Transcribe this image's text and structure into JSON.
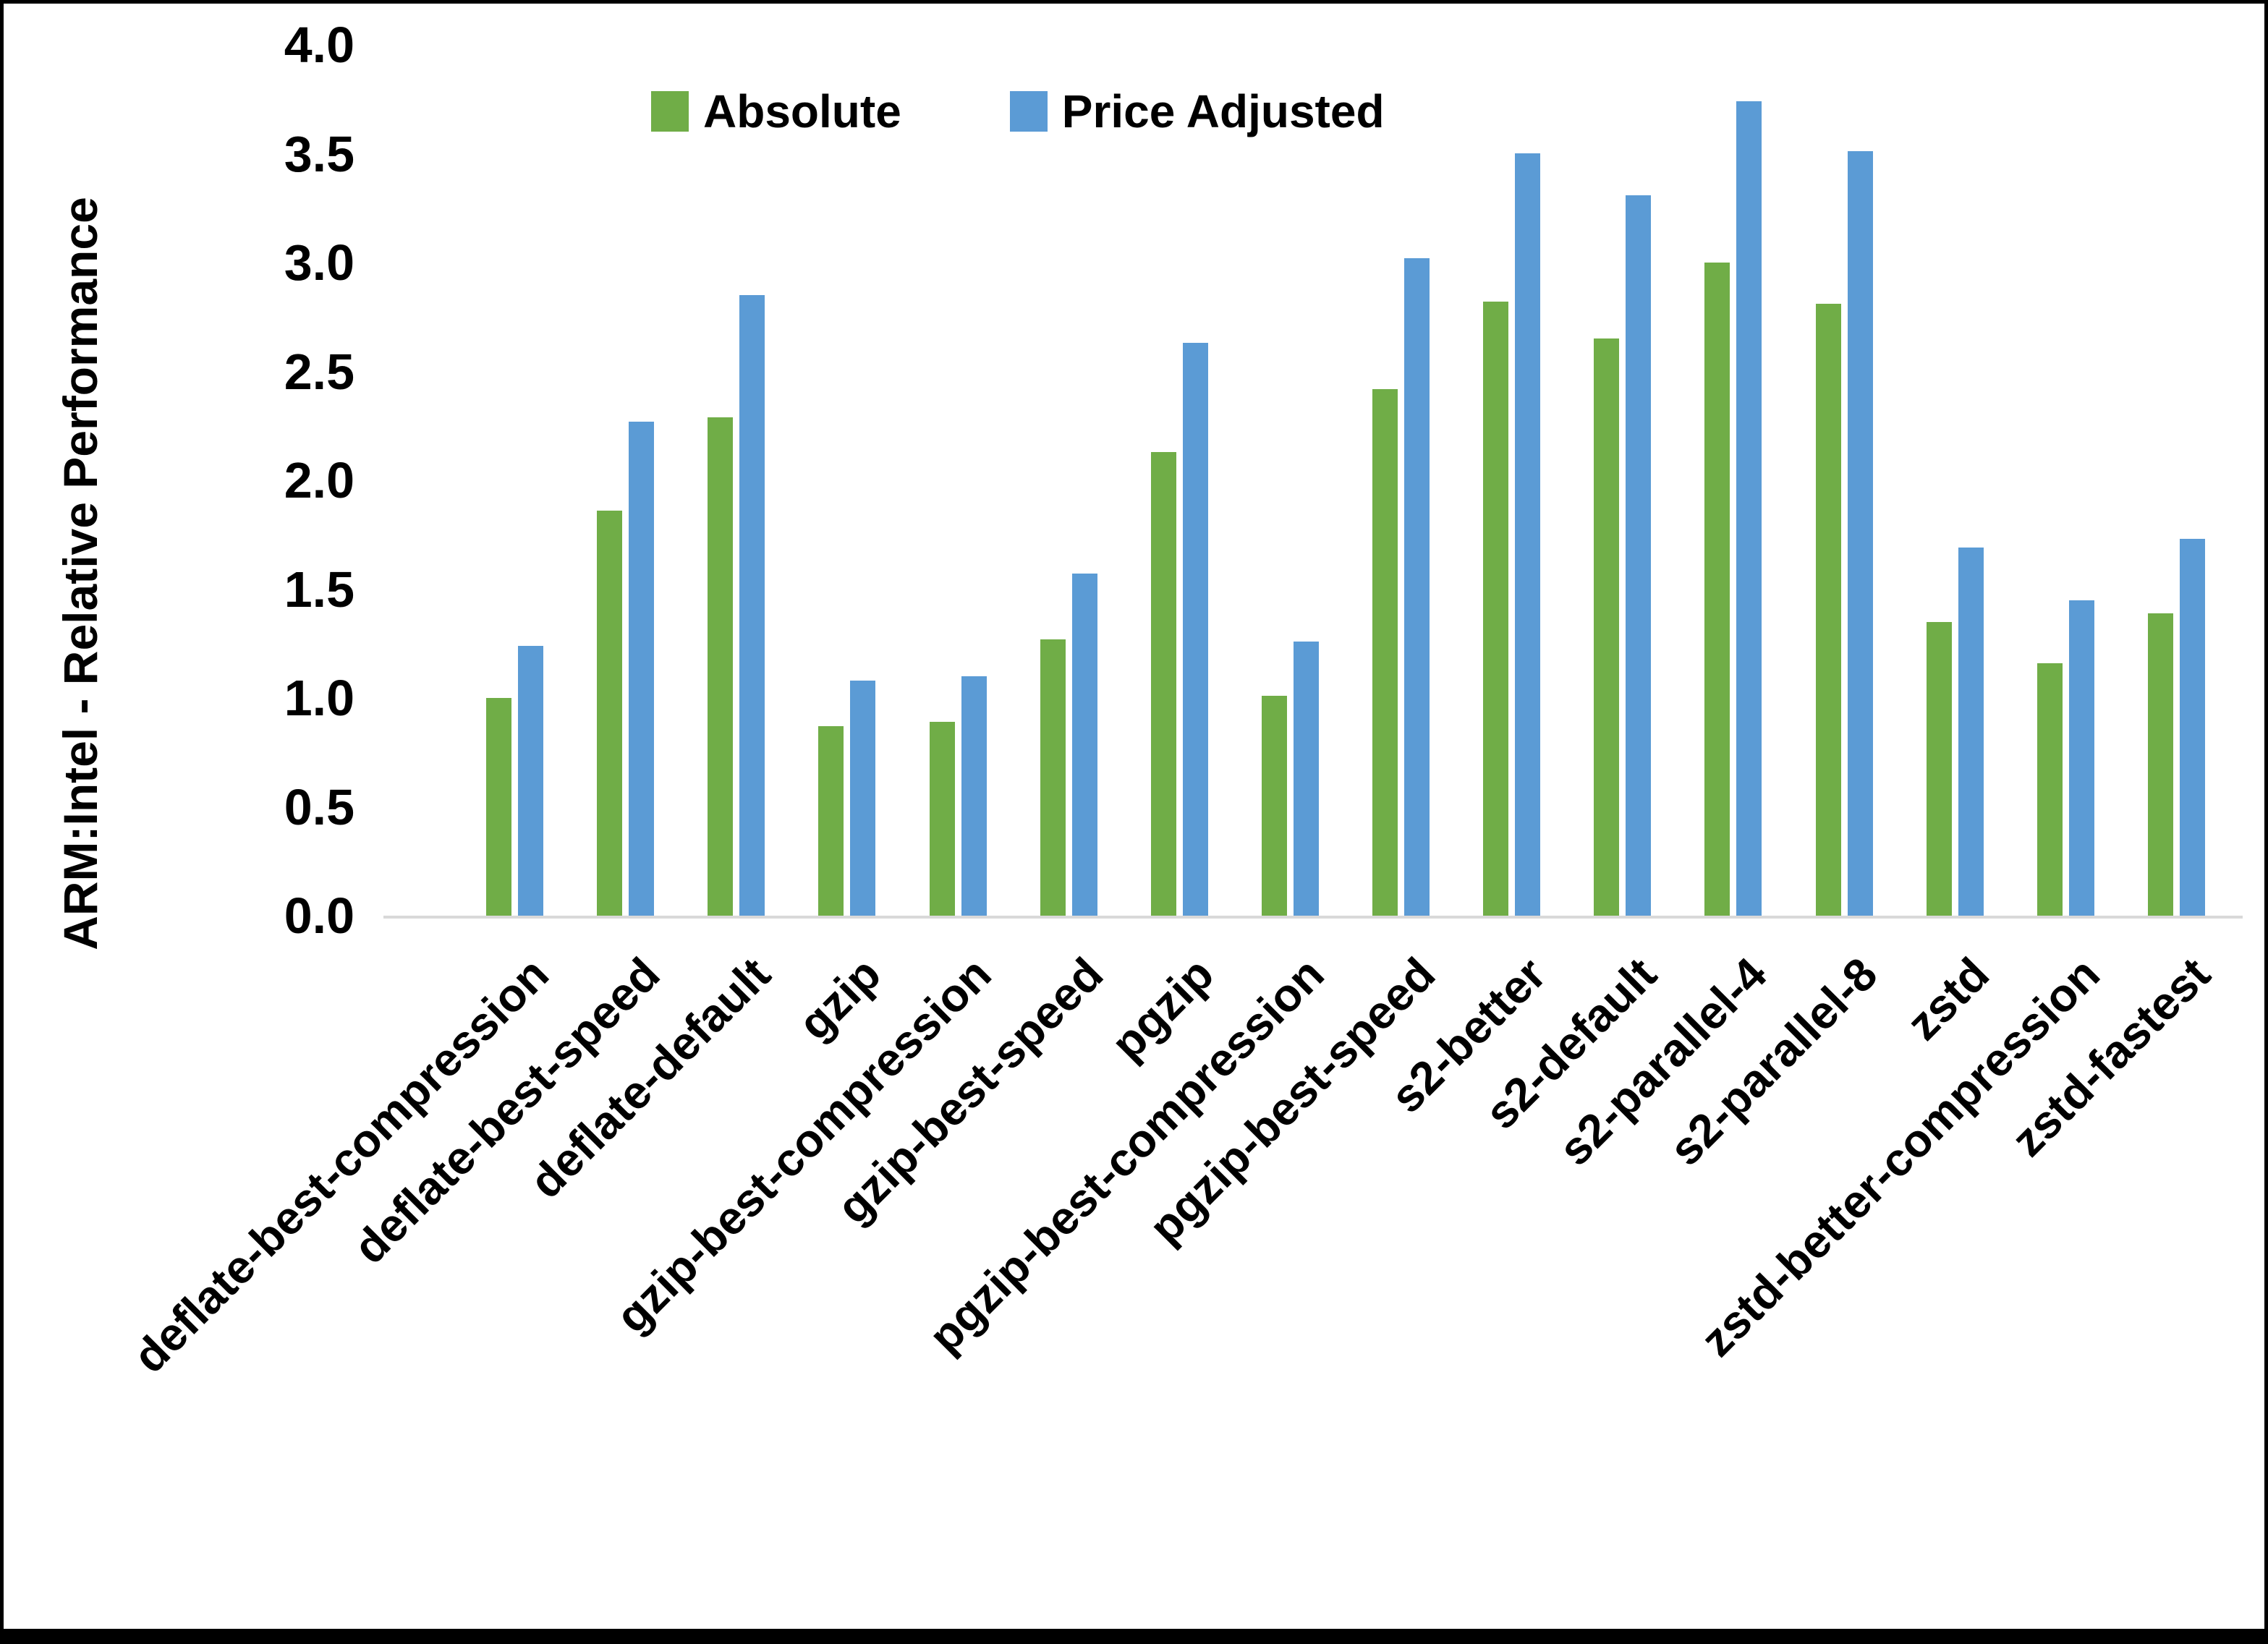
{
  "chart_data": {
    "type": "bar",
    "title": "",
    "xlabel": "",
    "ylabel": "ARM:Intel - Relative Performance",
    "ylim": [
      0.0,
      4.0
    ],
    "ytick_step": 0.5,
    "ytick_labels": [
      "0.0",
      "0.5",
      "1.0",
      "1.5",
      "2.0",
      "2.5",
      "3.0",
      "3.5",
      "4.0"
    ],
    "grid": false,
    "legend_position": "top-center",
    "categories": [
      "deflate-best-compression",
      "deflate-best-speed",
      "deflate-default",
      "gzip",
      "gzip-best-compression",
      "gzip-best-speed",
      "pgzip",
      "pgzip-best-compression",
      "pgzip-best-speed",
      "s2-better",
      "s2-default",
      "s2-parallel-4",
      "s2-parallel-8",
      "zstd",
      "zstd-better-compression",
      "zstd-fastest"
    ],
    "series": [
      {
        "name": "Absolute",
        "color": "#70AD47",
        "values": [
          1.0,
          1.86,
          2.29,
          0.87,
          0.89,
          1.27,
          2.13,
          1.01,
          2.42,
          2.82,
          2.65,
          3.0,
          2.81,
          1.35,
          1.16,
          1.39
        ]
      },
      {
        "name": "Price Adjusted",
        "color": "#5B9BD5",
        "values": [
          1.24,
          2.27,
          2.85,
          1.08,
          1.1,
          1.57,
          2.63,
          1.26,
          3.02,
          3.5,
          3.31,
          3.74,
          3.51,
          1.69,
          1.45,
          1.73
        ]
      }
    ]
  },
  "colors": {
    "background": "#FFFFFF",
    "frame": "#000000",
    "axis_line": "#D9D9D9",
    "text": "#000000"
  }
}
